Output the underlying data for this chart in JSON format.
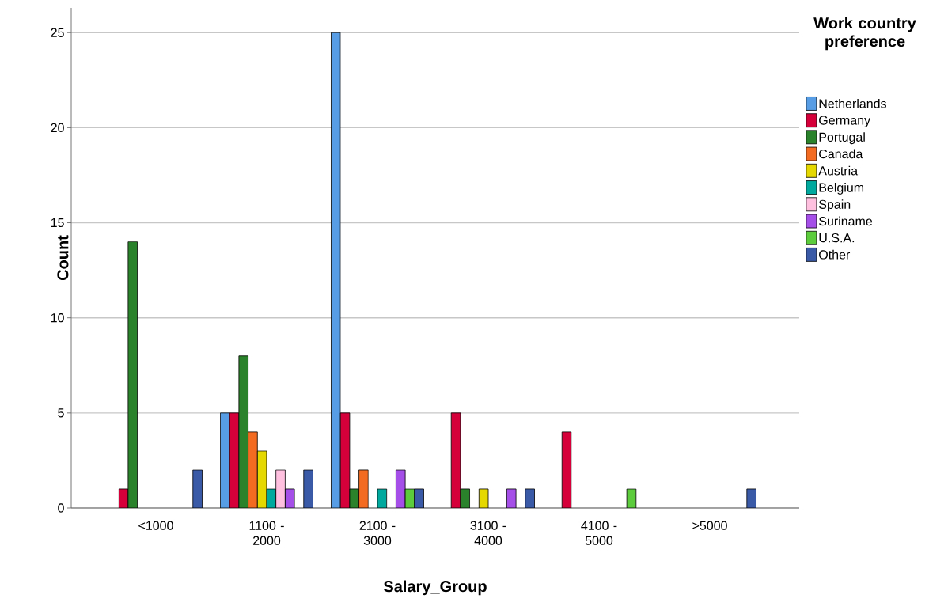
{
  "chart_data": {
    "type": "bar",
    "xlabel": "Salary_Group",
    "ylabel": "Count",
    "legend_title": "Work country preference",
    "categories": [
      "<1000",
      "1100 - 2000",
      "2100 - 3000",
      "3100 - 4000",
      "4100 - 5000",
      ">5000"
    ],
    "series": [
      {
        "name": "Netherlands",
        "color": "#569de5",
        "values": [
          null,
          5,
          25,
          null,
          null,
          null
        ]
      },
      {
        "name": "Germany",
        "color": "#d5003a",
        "values": [
          1,
          5,
          5,
          5,
          4,
          null
        ]
      },
      {
        "name": "Portugal",
        "color": "#2a832a",
        "values": [
          14,
          8,
          1,
          1,
          null,
          null
        ]
      },
      {
        "name": "Canada",
        "color": "#f26b21",
        "values": [
          null,
          4,
          2,
          null,
          null,
          null
        ]
      },
      {
        "name": "Austria",
        "color": "#e5d800",
        "values": [
          null,
          3,
          null,
          1,
          null,
          null
        ]
      },
      {
        "name": "Belgium",
        "color": "#00a99d",
        "values": [
          null,
          1,
          1,
          null,
          null,
          null
        ]
      },
      {
        "name": "Spain",
        "color": "#ffc0e0",
        "values": [
          null,
          2,
          null,
          null,
          null,
          null
        ]
      },
      {
        "name": "Suriname",
        "color": "#a64ee8",
        "values": [
          null,
          1,
          2,
          1,
          null,
          null
        ]
      },
      {
        "name": "U.S.A.",
        "color": "#5ccb3c",
        "values": [
          null,
          null,
          1,
          null,
          1,
          null
        ]
      },
      {
        "name": "Other",
        "color": "#3a5aa8",
        "values": [
          2,
          2,
          1,
          1,
          null,
          1
        ]
      }
    ],
    "ylim": [
      0,
      26.3
    ],
    "yticks": [
      0,
      5,
      10,
      15,
      20,
      25
    ],
    "grid": "y",
    "legend": "right"
  }
}
